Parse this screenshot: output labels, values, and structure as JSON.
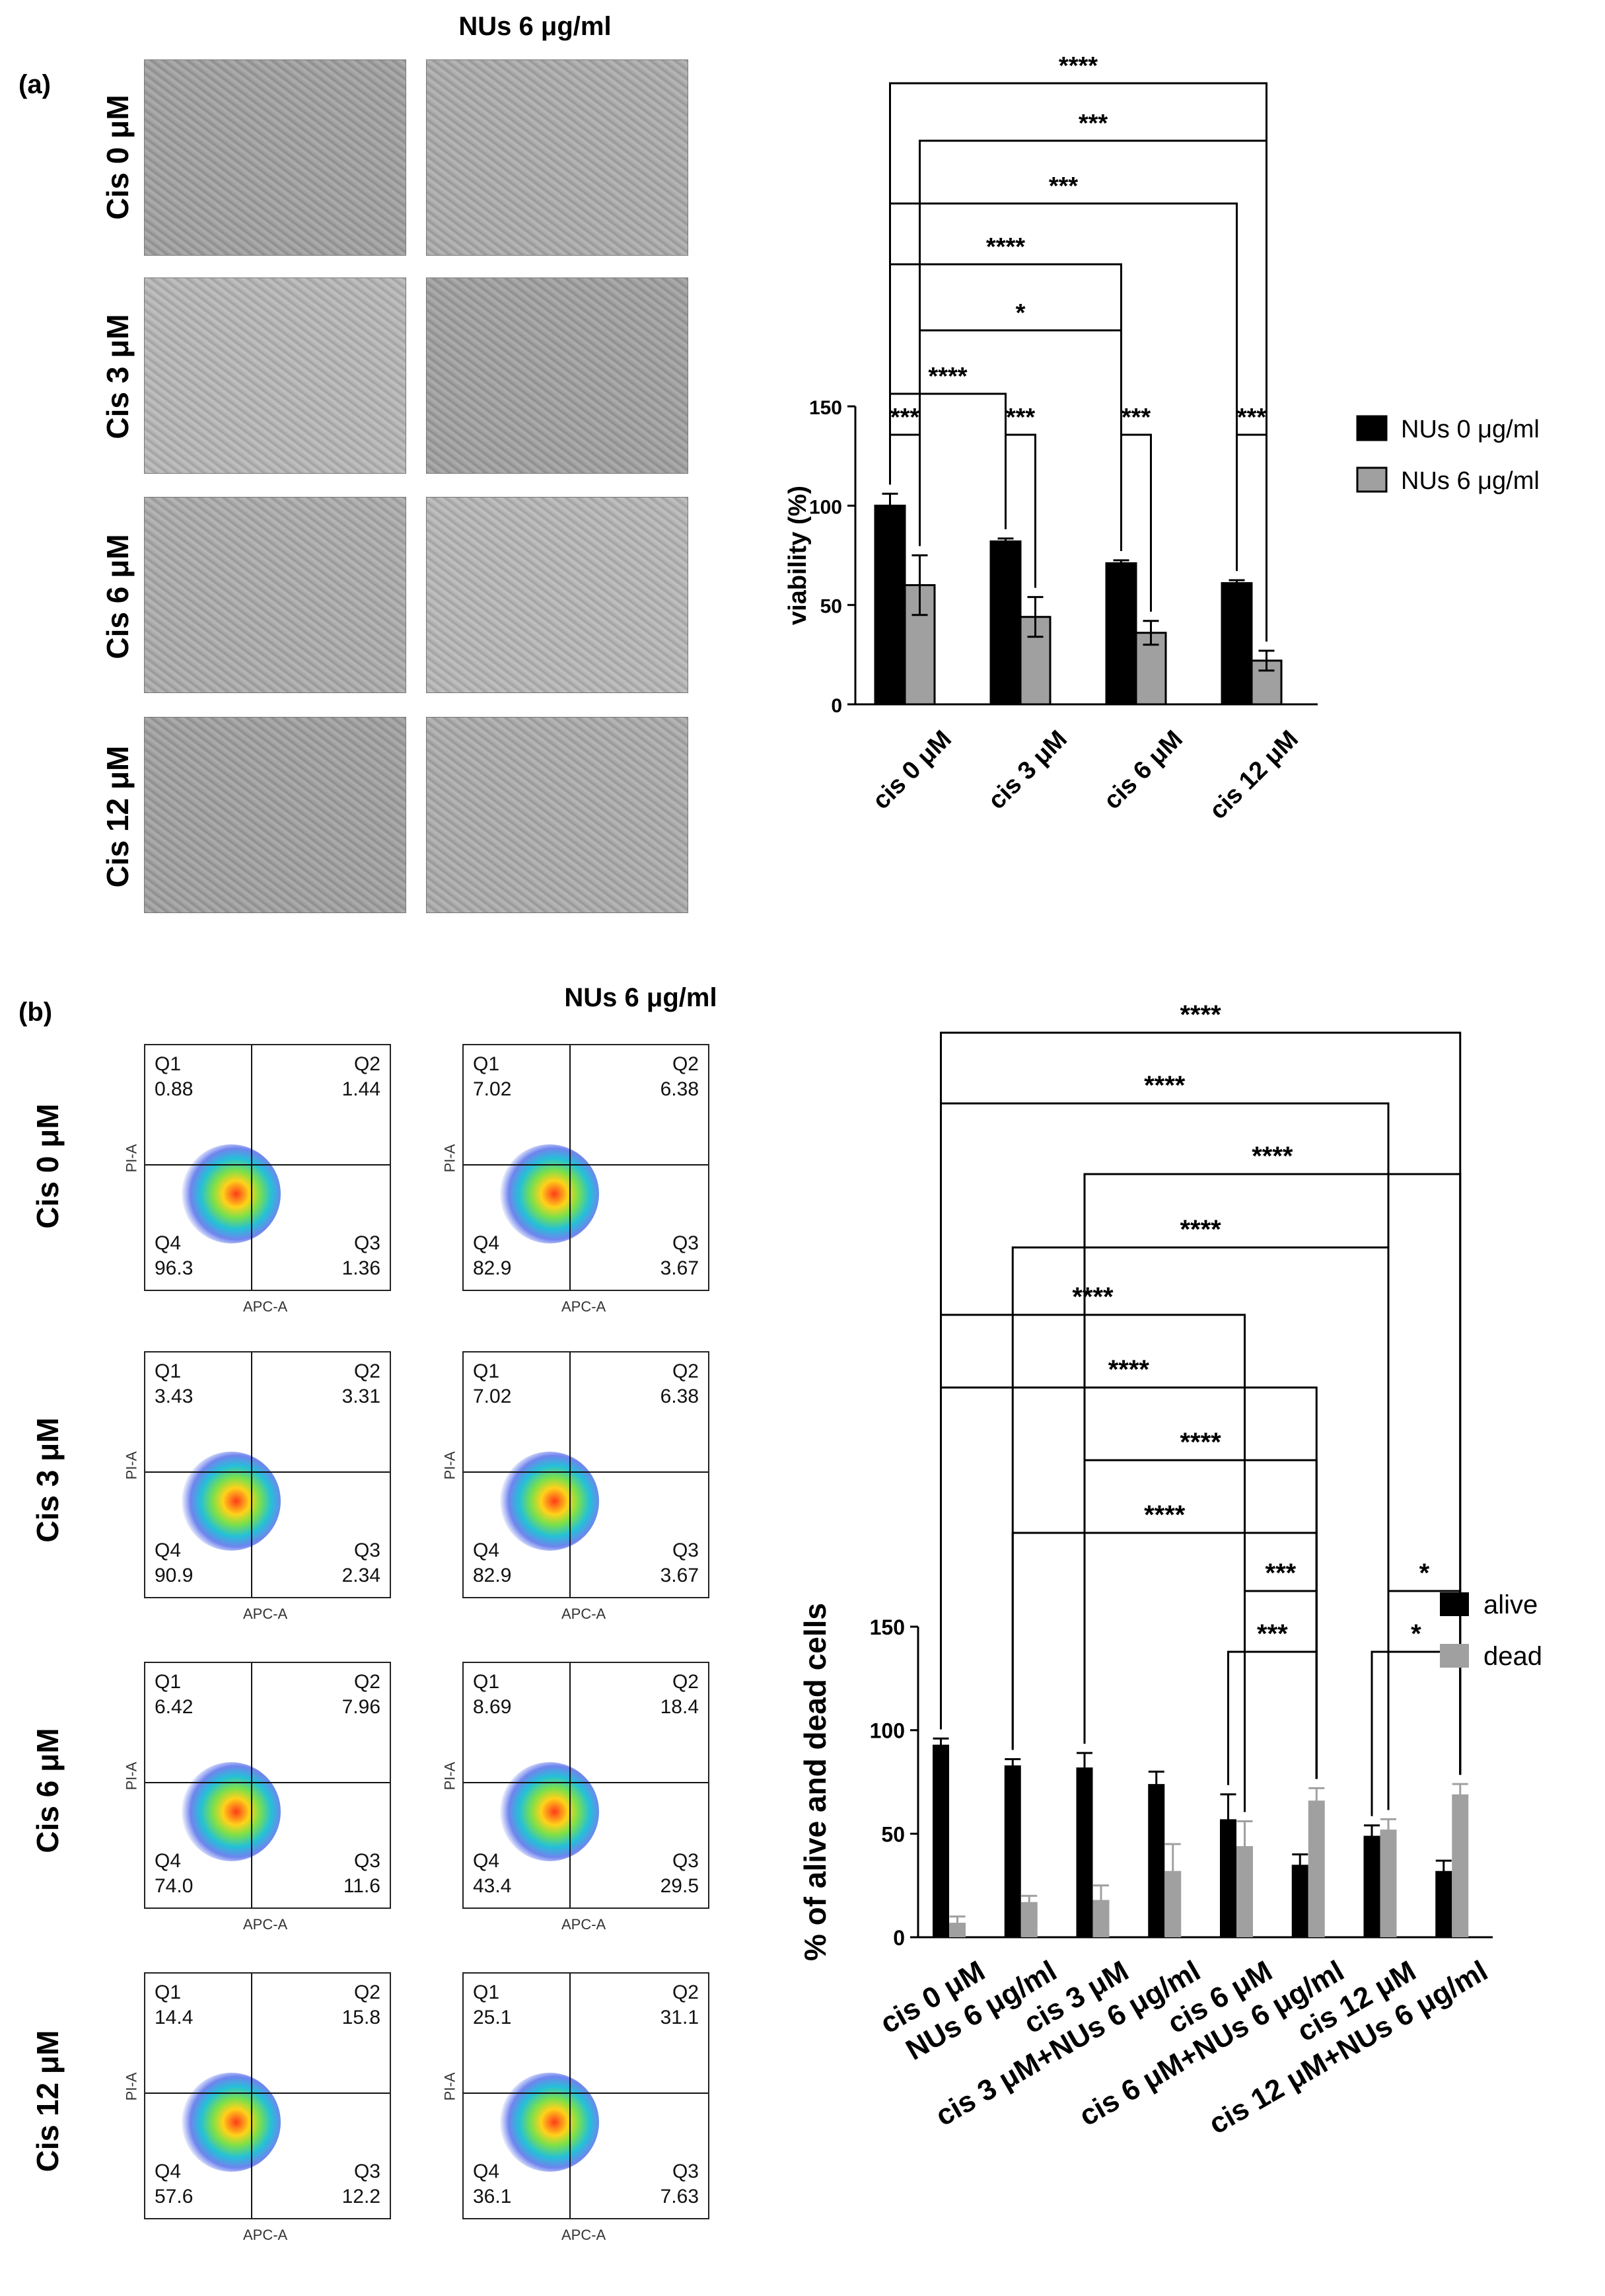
{
  "panel_a": {
    "label": "(a)",
    "column_title": "NUs 6 μg/ml",
    "row_labels": [
      "Cis 0 μM",
      "Cis 3 μM",
      "Cis 6 μM",
      "Cis 12 μM"
    ]
  },
  "panel_b": {
    "label": "(b)",
    "column_title": "NUs 6 μg/ml",
    "row_labels": [
      "Cis 0 μM",
      "Cis 3 μM",
      "Cis 6 μM",
      "Cis 12 μM"
    ],
    "flow_plots": [
      {
        "q1": "0.88",
        "q2": "1.44",
        "q3": "1.36",
        "q4": "96.3"
      },
      {
        "q1": "7.02",
        "q2": "6.38",
        "q3": "3.67",
        "q4": "82.9"
      },
      {
        "q1": "3.43",
        "q2": "3.31",
        "q3": "2.34",
        "q4": "90.9"
      },
      {
        "q1": "7.02",
        "q2": "6.38",
        "q3": "3.67",
        "q4": "82.9"
      },
      {
        "q1": "6.42",
        "q2": "7.96",
        "q3": "11.6",
        "q4": "74.0"
      },
      {
        "q1": "8.69",
        "q2": "18.4",
        "q3": "29.5",
        "q4": "43.4"
      },
      {
        "q1": "14.4",
        "q2": "15.8",
        "q3": "12.2",
        "q4": "57.6"
      },
      {
        "q1": "25.1",
        "q2": "31.1",
        "q3": "7.63",
        "q4": "36.1"
      }
    ],
    "quadrant_names": {
      "q1": "Q1",
      "q2": "Q2",
      "q3": "Q3",
      "q4": "Q4"
    },
    "flow_axes": {
      "x": "APC-A",
      "y": "PI-A"
    }
  },
  "chart_data": [
    {
      "type": "bar",
      "title": "",
      "xlabel": "",
      "ylabel": "viability (%)",
      "ylim": [
        0,
        150
      ],
      "yticks": [
        0,
        50,
        100,
        150
      ],
      "categories": [
        "cis 0 μM",
        "cis 3 μM",
        "cis 6 μM",
        "cis 12 μM"
      ],
      "series": [
        {
          "name": "NUs 0 μg/ml",
          "color": "#000000",
          "values": [
            100,
            82,
            71,
            61
          ],
          "errors": [
            6,
            1.5,
            1.5,
            1.5
          ]
        },
        {
          "name": "NUs 6 μg/ml",
          "color": "#a0a0a0",
          "values": [
            60,
            44,
            36,
            22
          ],
          "errors": [
            15,
            10,
            6,
            5
          ]
        }
      ],
      "legend_position": "right",
      "significance": [
        {
          "from": "NUs 0 μg/ml @ cis 0 μM",
          "to": "NUs 6 μg/ml @ cis 0 μM",
          "label": "***"
        },
        {
          "from": "NUs 0 μg/ml @ cis 3 μM",
          "to": "NUs 6 μg/ml @ cis 3 μM",
          "label": "***"
        },
        {
          "from": "NUs 0 μg/ml @ cis 6 μM",
          "to": "NUs 6 μg/ml @ cis 6 μM",
          "label": "***"
        },
        {
          "from": "NUs 0 μg/ml @ cis 12 μM",
          "to": "NUs 6 μg/ml @ cis 12 μM",
          "label": "***"
        },
        {
          "from": "NUs 0 μg/ml @ cis 0 μM",
          "to": "NUs 0 μg/ml @ cis 3 μM",
          "label": "****"
        },
        {
          "from": "NUs 6 μg/ml @ cis 0 μM",
          "to": "NUs 0 μg/ml @ cis 6 μM",
          "label": "*"
        },
        {
          "from": "NUs 0 μg/ml @ cis 0 μM",
          "to": "NUs 0 μg/ml @ cis 6 μM",
          "label": "****"
        },
        {
          "from": "NUs 0 μg/ml @ cis 0 μM",
          "to": "NUs 0 μg/ml @ cis 12 μM",
          "label": "***"
        },
        {
          "from": "NUs 6 μg/ml @ cis 0 μM",
          "to": "NUs 6 μg/ml @ cis 12 μM",
          "label": "***"
        },
        {
          "from": "NUs 0 μg/ml @ cis 0 μM",
          "to": "NUs 6 μg/ml @ cis 12 μM",
          "label": "****"
        }
      ]
    },
    {
      "type": "bar",
      "title": "",
      "xlabel": "",
      "ylabel": "% of alive and dead cells",
      "ylim": [
        0,
        150
      ],
      "yticks": [
        0,
        50,
        100,
        150
      ],
      "categories": [
        "cis 0 μM",
        "NUs 6 μg/ml",
        "cis 3 μM",
        "cis 3 μM+NUs 6 μg/ml",
        "cis 6 μM",
        "cis 6 μM+NUs 6 μg/ml",
        "cis 12 μM",
        "cis 12 μM+NUs 6 μg/ml"
      ],
      "series": [
        {
          "name": "alive",
          "color": "#000000",
          "values": [
            93,
            83,
            82,
            74,
            57,
            35,
            49,
            32
          ],
          "errors": [
            3,
            3,
            7,
            6,
            12,
            5,
            5,
            5
          ]
        },
        {
          "name": "dead",
          "color": "#a0a0a0",
          "values": [
            7,
            17,
            18,
            32,
            44,
            66,
            52,
            69
          ],
          "errors": [
            3,
            3,
            7,
            13,
            12,
            6,
            5,
            5
          ]
        }
      ],
      "legend_position": "right",
      "significance": [
        {
          "from": "alive @ cis 6 μM",
          "to": "dead @ cis 6 μM+NUs 6 μg/ml",
          "label": "***"
        },
        {
          "from": "dead @ cis 6 μM",
          "to": "dead @ cis 6 μM+NUs 6 μg/ml",
          "label": "***"
        },
        {
          "from": "alive @ cis 12 μM",
          "to": "dead @ cis 12 μM+NUs 6 μg/ml",
          "label": "*"
        },
        {
          "from": "dead @ cis 12 μM",
          "to": "dead @ cis 12 μM+NUs 6 μg/ml",
          "label": "*"
        },
        {
          "from": "alive @ NUs 6 μg/ml",
          "to": "dead @ cis 6 μM+NUs 6 μg/ml",
          "label": "****"
        },
        {
          "from": "alive @ cis 3 μM",
          "to": "dead @ cis 6 μM+NUs 6 μg/ml",
          "label": "****"
        },
        {
          "from": "alive @ cis 0 μM",
          "to": "dead @ cis 6 μM+NUs 6 μg/ml",
          "label": "****"
        },
        {
          "from": "alive @ cis 0 μM",
          "to": "dead @ cis 6 μM",
          "label": "****"
        },
        {
          "from": "alive @ NUs 6 μg/ml",
          "to": "dead @ cis 12 μM",
          "label": "****"
        },
        {
          "from": "alive @ cis 3 μM",
          "to": "dead @ cis 12 μM+NUs 6 μg/ml",
          "label": "****"
        },
        {
          "from": "alive @ cis 0 μM",
          "to": "dead @ cis 12 μM",
          "label": "****"
        },
        {
          "from": "alive @ cis 0 μM",
          "to": "dead @ cis 12 μM+NUs 6 μg/ml",
          "label": "****"
        }
      ]
    }
  ]
}
